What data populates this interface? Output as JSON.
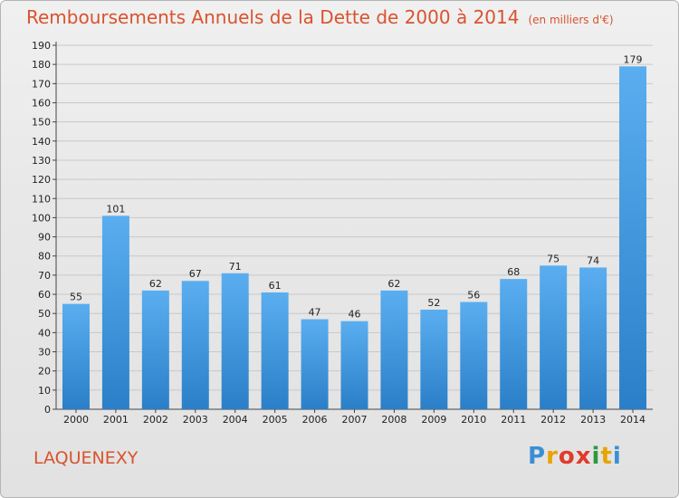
{
  "title": "Remboursements Annuels de la Dette de 2000 à 2014",
  "unit_note": "(en milliers d'€)",
  "commune": "LAQUENEXY",
  "brand": {
    "letters": [
      "P",
      "r",
      "o",
      "x",
      "i",
      "t",
      "i"
    ],
    "colors": [
      "#3a8fd4",
      "#e8a400",
      "#e23a2a",
      "#e23a2a",
      "#2a9a3a",
      "#e8a400",
      "#3a8fd4"
    ]
  },
  "colors": {
    "title": "#d9532e",
    "bar_light": "#5aaef0",
    "bar_dark": "#2a7fc8",
    "grid": "#c8c8c8"
  },
  "chart_data": {
    "type": "bar",
    "categories": [
      "2000",
      "2001",
      "2002",
      "2003",
      "2004",
      "2005",
      "2006",
      "2007",
      "2008",
      "2009",
      "2010",
      "2011",
      "2012",
      "2013",
      "2014"
    ],
    "values": [
      55,
      101,
      62,
      67,
      71,
      61,
      47,
      46,
      62,
      52,
      56,
      68,
      75,
      74,
      179
    ],
    "title": "Remboursements Annuels de la Dette de 2000 à 2014",
    "xlabel": "",
    "ylabel": "",
    "ylim": [
      0,
      190
    ],
    "ytick_step": 10,
    "grid": true,
    "data_labels": true
  }
}
